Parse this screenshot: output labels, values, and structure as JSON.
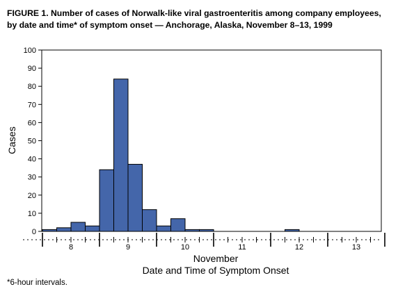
{
  "title": "FIGURE 1. Number of cases of Norwalk-like viral gastroenteritis among company employees, by date and time* of symptom onset — Anchorage, Alaska, November 8–13, 1999",
  "footnote": "*6-hour intervals.",
  "colors": {
    "bar_fill": "#4466aa",
    "bar_stroke": "#000000",
    "axis": "#000000"
  },
  "chart_data": {
    "type": "bar",
    "title": "FIGURE 1. Number of cases of Norwalk-like viral gastroenteritis among company employees, by date and time* of symptom onset — Anchorage, Alaska, November 8–13, 1999",
    "xlabel_line1": "November",
    "xlabel_line2": "Date and Time of Symptom Onset",
    "ylabel": "Cases",
    "ylim": [
      0,
      100
    ],
    "yticks": [
      0,
      10,
      20,
      30,
      40,
      50,
      60,
      70,
      80,
      90,
      100
    ],
    "grid": false,
    "interval_hours": 6,
    "day_ticks": [
      "8",
      "9",
      "10",
      "11",
      "12",
      "13"
    ],
    "bins_start_day": 7.75,
    "bins": [
      {
        "day": "8",
        "interval": 1,
        "value": 1
      },
      {
        "day": "8",
        "interval": 2,
        "value": 2
      },
      {
        "day": "8",
        "interval": 3,
        "value": 5
      },
      {
        "day": "8",
        "interval": 4,
        "value": 3
      },
      {
        "day": "9",
        "interval": 1,
        "value": 34
      },
      {
        "day": "9",
        "interval": 2,
        "value": 84
      },
      {
        "day": "9",
        "interval": 3,
        "value": 37
      },
      {
        "day": "9",
        "interval": 4,
        "value": 12
      },
      {
        "day": "10",
        "interval": 1,
        "value": 3
      },
      {
        "day": "10",
        "interval": 2,
        "value": 7
      },
      {
        "day": "10",
        "interval": 3,
        "value": 1
      },
      {
        "day": "10",
        "interval": 4,
        "value": 1
      },
      {
        "day": "11",
        "interval": 1,
        "value": 0
      },
      {
        "day": "11",
        "interval": 2,
        "value": 0
      },
      {
        "day": "11",
        "interval": 3,
        "value": 0
      },
      {
        "day": "11",
        "interval": 4,
        "value": 0
      },
      {
        "day": "12",
        "interval": 1,
        "value": 0
      },
      {
        "day": "12",
        "interval": 2,
        "value": 1
      },
      {
        "day": "12",
        "interval": 3,
        "value": 0
      },
      {
        "day": "12",
        "interval": 4,
        "value": 0
      },
      {
        "day": "13",
        "interval": 1,
        "value": 0
      },
      {
        "day": "13",
        "interval": 2,
        "value": 0
      }
    ]
  }
}
